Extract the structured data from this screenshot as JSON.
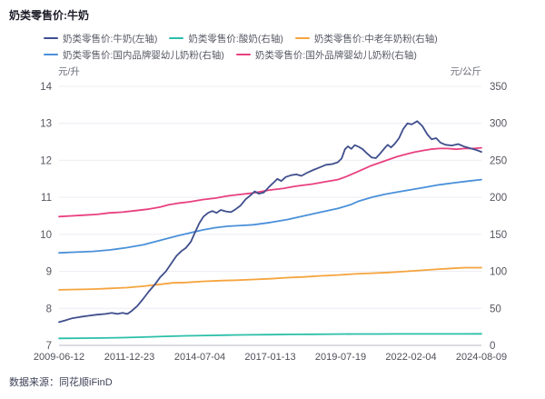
{
  "title": "奶类零售价:牛奶",
  "source": "数据来源：同花顺iFinD",
  "axes": {
    "left_unit": "元/升",
    "right_unit": "元/公斤",
    "left_ticks": [
      14,
      13,
      12,
      11,
      10,
      9,
      8,
      7
    ],
    "right_ticks": [
      350,
      300,
      250,
      200,
      150,
      100,
      50,
      0
    ],
    "x_ticks": [
      "2009-06-12",
      "2011-12-23",
      "2014-07-04",
      "2017-01-13",
      "2019-07-19",
      "2022-02-04",
      "2024-08-09"
    ]
  },
  "legend": {
    "items": [
      {
        "label": "奶类零售价:牛奶(左轴)"
      },
      {
        "label": "奶类零售价:酸奶(右轴)"
      },
      {
        "label": "奶类零售价:中老年奶粉(右轴)"
      },
      {
        "label": "奶类零售价:国内品牌婴幼儿奶粉(右轴)"
      },
      {
        "label": "奶类零售价:国外品牌婴幼儿奶粉(右轴)"
      }
    ]
  },
  "colors": {
    "grid": "#ececf3",
    "axis_line": "#b9bac4",
    "tick_text": "#55565f"
  },
  "chart_data": {
    "type": "line",
    "title": "奶类零售价:牛奶",
    "x_axis": {
      "tick_labels": [
        "2009-06-12",
        "2011-12-23",
        "2014-07-04",
        "2017-01-13",
        "2019-07-19",
        "2022-02-04",
        "2024-08-09"
      ],
      "note": "x of each point is a 0-1 fraction of the span 2009-06-12 .. 2024-08-09"
    },
    "left_axis": {
      "label": "元/升",
      "range": [
        7,
        14
      ]
    },
    "right_axis": {
      "label": "元/公斤",
      "range": [
        0,
        350
      ]
    },
    "grid": "horizontal-only",
    "legend_position": "top",
    "series": [
      {
        "name": "奶类零售价:牛奶(左轴)",
        "axis": "left",
        "color": "#3f4e8c",
        "points": [
          [
            0,
            7.63
          ],
          [
            0.013,
            7.67
          ],
          [
            0.03,
            7.73
          ],
          [
            0.05,
            7.77
          ],
          [
            0.07,
            7.8
          ],
          [
            0.09,
            7.83
          ],
          [
            0.11,
            7.85
          ],
          [
            0.125,
            7.88
          ],
          [
            0.138,
            7.85
          ],
          [
            0.15,
            7.88
          ],
          [
            0.162,
            7.85
          ],
          [
            0.172,
            7.93
          ],
          [
            0.185,
            8.06
          ],
          [
            0.198,
            8.24
          ],
          [
            0.212,
            8.45
          ],
          [
            0.227,
            8.65
          ],
          [
            0.24,
            8.85
          ],
          [
            0.253,
            9.0
          ],
          [
            0.265,
            9.2
          ],
          [
            0.278,
            9.42
          ],
          [
            0.29,
            9.55
          ],
          [
            0.3,
            9.63
          ],
          [
            0.312,
            9.8
          ],
          [
            0.322,
            10.05
          ],
          [
            0.332,
            10.3
          ],
          [
            0.342,
            10.48
          ],
          [
            0.353,
            10.58
          ],
          [
            0.363,
            10.63
          ],
          [
            0.373,
            10.58
          ],
          [
            0.383,
            10.66
          ],
          [
            0.395,
            10.62
          ],
          [
            0.407,
            10.6
          ],
          [
            0.418,
            10.68
          ],
          [
            0.43,
            10.78
          ],
          [
            0.442,
            10.95
          ],
          [
            0.453,
            11.05
          ],
          [
            0.463,
            11.16
          ],
          [
            0.473,
            11.1
          ],
          [
            0.485,
            11.13
          ],
          [
            0.497,
            11.28
          ],
          [
            0.508,
            11.4
          ],
          [
            0.517,
            11.5
          ],
          [
            0.526,
            11.44
          ],
          [
            0.537,
            11.55
          ],
          [
            0.55,
            11.6
          ],
          [
            0.562,
            11.62
          ],
          [
            0.574,
            11.58
          ],
          [
            0.588,
            11.67
          ],
          [
            0.602,
            11.74
          ],
          [
            0.617,
            11.81
          ],
          [
            0.632,
            11.88
          ],
          [
            0.647,
            11.9
          ],
          [
            0.66,
            11.95
          ],
          [
            0.669,
            12.05
          ],
          [
            0.677,
            12.3
          ],
          [
            0.684,
            12.38
          ],
          [
            0.692,
            12.31
          ],
          [
            0.7,
            12.41
          ],
          [
            0.709,
            12.37
          ],
          [
            0.719,
            12.3
          ],
          [
            0.73,
            12.18
          ],
          [
            0.74,
            12.08
          ],
          [
            0.75,
            12.06
          ],
          [
            0.76,
            12.18
          ],
          [
            0.77,
            12.32
          ],
          [
            0.778,
            12.42
          ],
          [
            0.786,
            12.35
          ],
          [
            0.795,
            12.45
          ],
          [
            0.805,
            12.6
          ],
          [
            0.815,
            12.85
          ],
          [
            0.825,
            13.0
          ],
          [
            0.835,
            12.97
          ],
          [
            0.848,
            13.06
          ],
          [
            0.86,
            12.93
          ],
          [
            0.872,
            12.7
          ],
          [
            0.882,
            12.57
          ],
          [
            0.893,
            12.6
          ],
          [
            0.903,
            12.48
          ],
          [
            0.915,
            12.42
          ],
          [
            0.93,
            12.4
          ],
          [
            0.945,
            12.44
          ],
          [
            0.96,
            12.37
          ],
          [
            0.975,
            12.32
          ],
          [
            0.988,
            12.28
          ],
          [
            1,
            12.23
          ]
        ]
      },
      {
        "name": "奶类零售价:酸奶(右轴)",
        "axis": "right",
        "color": "#2bbfa8",
        "points": [
          [
            0,
            9.5
          ],
          [
            0.05,
            9.7
          ],
          [
            0.1,
            10
          ],
          [
            0.15,
            10.4
          ],
          [
            0.2,
            11.2
          ],
          [
            0.25,
            12.2
          ],
          [
            0.3,
            12.9
          ],
          [
            0.35,
            13.4
          ],
          [
            0.4,
            13.9
          ],
          [
            0.45,
            14.2
          ],
          [
            0.5,
            14.5
          ],
          [
            0.55,
            14.8
          ],
          [
            0.6,
            15
          ],
          [
            0.65,
            15.2
          ],
          [
            0.7,
            15.3
          ],
          [
            0.75,
            15.4
          ],
          [
            0.8,
            15.5
          ],
          [
            0.85,
            15.5
          ],
          [
            0.9,
            15.5
          ],
          [
            0.95,
            15.5
          ],
          [
            1,
            15.6
          ]
        ]
      },
      {
        "name": "奶类零售价:中老年奶粉(右轴)",
        "axis": "right",
        "color": "#f5a43d",
        "points": [
          [
            0,
            75
          ],
          [
            0.04,
            75.5
          ],
          [
            0.08,
            76
          ],
          [
            0.12,
            77
          ],
          [
            0.16,
            78
          ],
          [
            0.2,
            80
          ],
          [
            0.24,
            82.5
          ],
          [
            0.27,
            84.5
          ],
          [
            0.3,
            85
          ],
          [
            0.34,
            86.5
          ],
          [
            0.38,
            87.5
          ],
          [
            0.42,
            88
          ],
          [
            0.46,
            89
          ],
          [
            0.5,
            90
          ],
          [
            0.54,
            91.5
          ],
          [
            0.58,
            92.5
          ],
          [
            0.62,
            94
          ],
          [
            0.66,
            95
          ],
          [
            0.7,
            96.5
          ],
          [
            0.74,
            97.5
          ],
          [
            0.78,
            98.5
          ],
          [
            0.82,
            100
          ],
          [
            0.86,
            101.5
          ],
          [
            0.9,
            103
          ],
          [
            0.93,
            104
          ],
          [
            0.96,
            105
          ],
          [
            1,
            105
          ]
        ]
      },
      {
        "name": "奶类零售价:国内品牌婴幼儿奶粉(右轴)",
        "axis": "right",
        "color": "#4a90d9",
        "points": [
          [
            0,
            125
          ],
          [
            0.04,
            126
          ],
          [
            0.08,
            127
          ],
          [
            0.12,
            129
          ],
          [
            0.16,
            132
          ],
          [
            0.2,
            136
          ],
          [
            0.24,
            142
          ],
          [
            0.28,
            148
          ],
          [
            0.31,
            152
          ],
          [
            0.34,
            156
          ],
          [
            0.37,
            159
          ],
          [
            0.4,
            161
          ],
          [
            0.43,
            162
          ],
          [
            0.46,
            163
          ],
          [
            0.5,
            166
          ],
          [
            0.54,
            170
          ],
          [
            0.58,
            175
          ],
          [
            0.62,
            180
          ],
          [
            0.66,
            185
          ],
          [
            0.69,
            190
          ],
          [
            0.71,
            195
          ],
          [
            0.74,
            200
          ],
          [
            0.77,
            204
          ],
          [
            0.8,
            207
          ],
          [
            0.83,
            210
          ],
          [
            0.86,
            213
          ],
          [
            0.9,
            217
          ],
          [
            0.94,
            220
          ],
          [
            0.97,
            222
          ],
          [
            1,
            224
          ]
        ]
      },
      {
        "name": "奶类零售价:国外品牌婴幼儿奶粉(右轴)",
        "axis": "right",
        "color": "#e84080",
        "points": [
          [
            0,
            174
          ],
          [
            0.03,
            175
          ],
          [
            0.06,
            176
          ],
          [
            0.09,
            177
          ],
          [
            0.12,
            179
          ],
          [
            0.15,
            180
          ],
          [
            0.18,
            182
          ],
          [
            0.21,
            184
          ],
          [
            0.24,
            187
          ],
          [
            0.26,
            190
          ],
          [
            0.28,
            192
          ],
          [
            0.31,
            194
          ],
          [
            0.34,
            197
          ],
          [
            0.37,
            199
          ],
          [
            0.4,
            202
          ],
          [
            0.43,
            204
          ],
          [
            0.46,
            206
          ],
          [
            0.5,
            210
          ],
          [
            0.53,
            212
          ],
          [
            0.56,
            215
          ],
          [
            0.6,
            218
          ],
          [
            0.63,
            221
          ],
          [
            0.66,
            224
          ],
          [
            0.68,
            228
          ],
          [
            0.7,
            233
          ],
          [
            0.72,
            238
          ],
          [
            0.74,
            243
          ],
          [
            0.76,
            247
          ],
          [
            0.78,
            251
          ],
          [
            0.8,
            255
          ],
          [
            0.82,
            258
          ],
          [
            0.84,
            261
          ],
          [
            0.86,
            263
          ],
          [
            0.88,
            265
          ],
          [
            0.9,
            266
          ],
          [
            0.92,
            266
          ],
          [
            0.94,
            265
          ],
          [
            0.96,
            266
          ],
          [
            0.98,
            266
          ],
          [
            1,
            267
          ]
        ]
      }
    ]
  }
}
